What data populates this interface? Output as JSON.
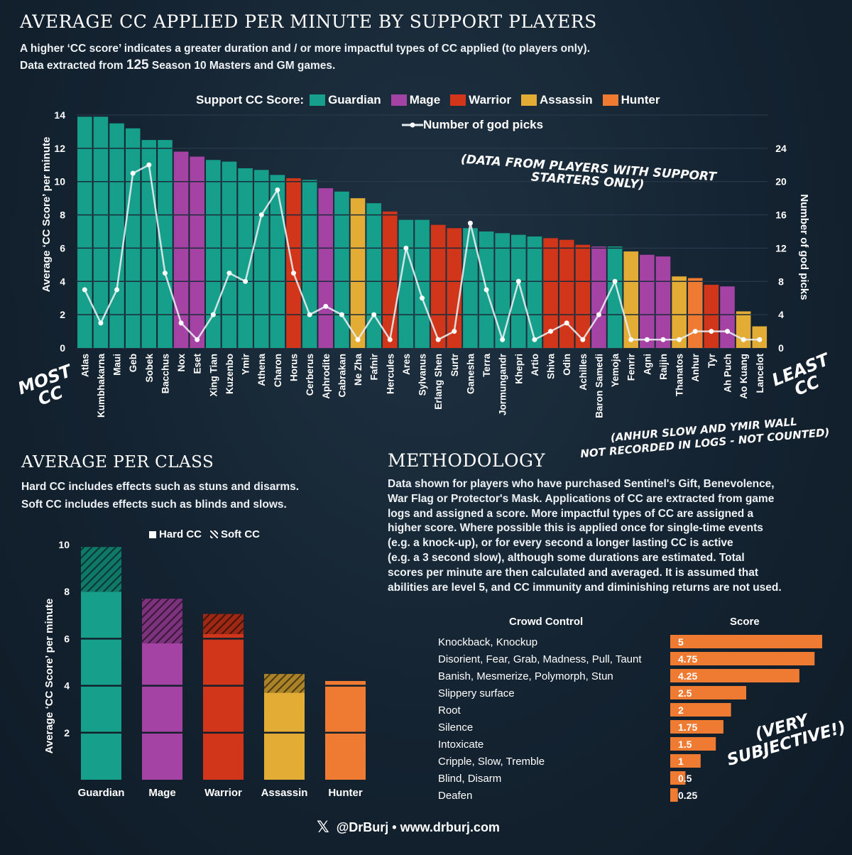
{
  "header": {
    "title": "AVERAGE CC APPLIED PER MINUTE BY SUPPORT PLAYERS",
    "subtitle_line1": "A higher ‘CC score’ indicates a greater duration and / or more impactful types of CC applied (to players only).",
    "subtitle_line2_prefix": "Data extracted from",
    "subtitle_line2_count": "125",
    "subtitle_line2_suffix": "Season 10 Masters and GM games."
  },
  "legend": {
    "title": "Support CC Score:",
    "classes": [
      {
        "name": "Guardian",
        "color": "#16a08b"
      },
      {
        "name": "Mage",
        "color": "#a543a5"
      },
      {
        "name": "Warrior",
        "color": "#d2361a"
      },
      {
        "name": "Assassin",
        "color": "#e3ad35"
      },
      {
        "name": "Hunter",
        "color": "#ef7a31"
      }
    ],
    "line_label": "Number of god picks"
  },
  "annotations": {
    "data_note_line1": "(DATA FROM PLAYERS WITH SUPPORT",
    "data_note_line2": "STARTERS ONLY)",
    "most_line1": "MOST",
    "most_line2": "CC",
    "least_line1": "LEAST",
    "least_line2": "CC",
    "anhur_line1": "(ANHUR SLOW AND YMIR WALL",
    "anhur_line2": "NOT RECORDED IN LOGS - NOT COUNTED)",
    "subjective_line1": "(VERY",
    "subjective_line2": "SUBJECTIVE!)"
  },
  "chart_data": [
    {
      "type": "bar",
      "ylabel": "Average ‘CC Score’ per minute",
      "y2label": "Number of god picks",
      "ylim": [
        0,
        14
      ],
      "y2lim": [
        0,
        28
      ],
      "yticks": [
        0,
        2,
        4,
        6,
        8,
        10,
        12,
        14
      ],
      "y2ticks": [
        0,
        4,
        8,
        12,
        16,
        20,
        24
      ],
      "categories": [
        "Atlas",
        "Kumbhakarna",
        "Maui",
        "Geb",
        "Sobek",
        "Bacchus",
        "Nox",
        "Eset",
        "Xing Tian",
        "Kuzenbo",
        "Ymir",
        "Athena",
        "Charon",
        "Horus",
        "Cerberus",
        "Aphrodite",
        "Cabrakan",
        "Ne Zha",
        "Fafnir",
        "Hercules",
        "Ares",
        "Sylvanus",
        "Erlang Shen",
        "Surtr",
        "Ganesha",
        "Terra",
        "Jormungandr",
        "Khepri",
        "Artio",
        "Shiva",
        "Odin",
        "Achilles",
        "Baron Samedi",
        "Yemoja",
        "Fenrir",
        "Agni",
        "Raijin",
        "Thanatos",
        "Anhur",
        "Tyr",
        "Ah Puch",
        "Ao Kuang",
        "Lancelot"
      ],
      "classes": [
        "Guardian",
        "Guardian",
        "Guardian",
        "Guardian",
        "Guardian",
        "Guardian",
        "Mage",
        "Mage",
        "Guardian",
        "Guardian",
        "Guardian",
        "Guardian",
        "Guardian",
        "Warrior",
        "Guardian",
        "Mage",
        "Guardian",
        "Assassin",
        "Guardian",
        "Warrior",
        "Guardian",
        "Guardian",
        "Warrior",
        "Warrior",
        "Guardian",
        "Guardian",
        "Guardian",
        "Guardian",
        "Guardian",
        "Warrior",
        "Warrior",
        "Warrior",
        "Mage",
        "Guardian",
        "Assassin",
        "Mage",
        "Mage",
        "Assassin",
        "Hunter",
        "Warrior",
        "Mage",
        "Assassin",
        "Assassin"
      ],
      "series": [
        {
          "name": "Support CC Score",
          "values": [
            13.9,
            13.9,
            13.5,
            13.2,
            12.5,
            12.5,
            11.8,
            11.5,
            11.3,
            11.2,
            10.8,
            10.7,
            10.4,
            10.2,
            10.1,
            9.6,
            9.4,
            9.0,
            8.7,
            8.2,
            7.7,
            7.7,
            7.4,
            7.2,
            7.2,
            7.0,
            6.9,
            6.8,
            6.7,
            6.6,
            6.5,
            6.2,
            6.1,
            6.1,
            5.8,
            5.6,
            5.5,
            4.3,
            4.2,
            3.8,
            3.7,
            2.2,
            1.3
          ]
        },
        {
          "name": "Number of god picks",
          "values": [
            7,
            3,
            7,
            21,
            22,
            9,
            3,
            1,
            4,
            9,
            8,
            16,
            19,
            9,
            4,
            5,
            4,
            1,
            4,
            1,
            12,
            6,
            1,
            2,
            15,
            7,
            1,
            8,
            1,
            2,
            3,
            1,
            4,
            8,
            1,
            1,
            1,
            1,
            2,
            2,
            2,
            1,
            1
          ]
        }
      ]
    },
    {
      "type": "bar",
      "title": "AVERAGE PER CLASS",
      "ylabel": "Average ‘CC Score’ per minute",
      "ylim": [
        0,
        10
      ],
      "yticks": [
        2,
        4,
        6,
        8,
        10
      ],
      "categories": [
        "Guardian",
        "Mage",
        "Warrior",
        "Assassin",
        "Hunter"
      ],
      "series": [
        {
          "name": "Hard CC",
          "values": [
            8.0,
            5.8,
            6.2,
            3.7,
            4.2
          ]
        },
        {
          "name": "Soft CC",
          "values": [
            1.9,
            1.9,
            0.85,
            0.8,
            0.0
          ]
        }
      ]
    },
    {
      "type": "bar",
      "orientation": "horizontal",
      "xlabel": "Score",
      "ylabel": "Crowd Control",
      "xlim": [
        0,
        5
      ],
      "categories": [
        "Knockback, Knockup",
        "Disorient, Fear, Grab, Madness, Pull, Taunt",
        "Banish, Mesmerize, Polymorph, Stun",
        "Slippery surface",
        "Root",
        "Silence",
        "Intoxicate",
        "Cripple, Slow, Tremble",
        "Blind, Disarm",
        "Deafen"
      ],
      "values": [
        5,
        4.75,
        4.25,
        2.5,
        2,
        1.75,
        1.5,
        1,
        0.5,
        0.25
      ],
      "value_labels": [
        "5",
        "4.75",
        "4.25",
        "2.5",
        "2",
        "1.75",
        "1.5",
        "1",
        "0.5",
        "0.25"
      ]
    }
  ],
  "class_section": {
    "desc_line1": "Hard CC includes effects such as stuns and disarms.",
    "desc_line2": "Soft CC includes effects such as blinds and slows.",
    "legend_hard": "Hard CC",
    "legend_soft": "Soft CC"
  },
  "methodology": {
    "title": "METHODOLOGY",
    "lines": [
      "Data shown for players who have purchased Sentinel's Gift, Benevolence,",
      "War Flag or Protector's Mask. Applications of CC are extracted from game",
      "logs and assigned a score. More impactful types of CC are assigned a",
      "higher score. Where possible this is applied once for single-time events",
      "(e.g. a knock-up), or for every second a longer lasting CC is active",
      "(e.g. a 3 second slow), although some durations are estimated. Total",
      "scores per minute are then calculated and averaged. It is assumed that",
      "abilities are level 5, and CC immunity and diminishing returns are not used."
    ]
  },
  "footer": {
    "text": "@DrBurj • www.drburj.com"
  }
}
